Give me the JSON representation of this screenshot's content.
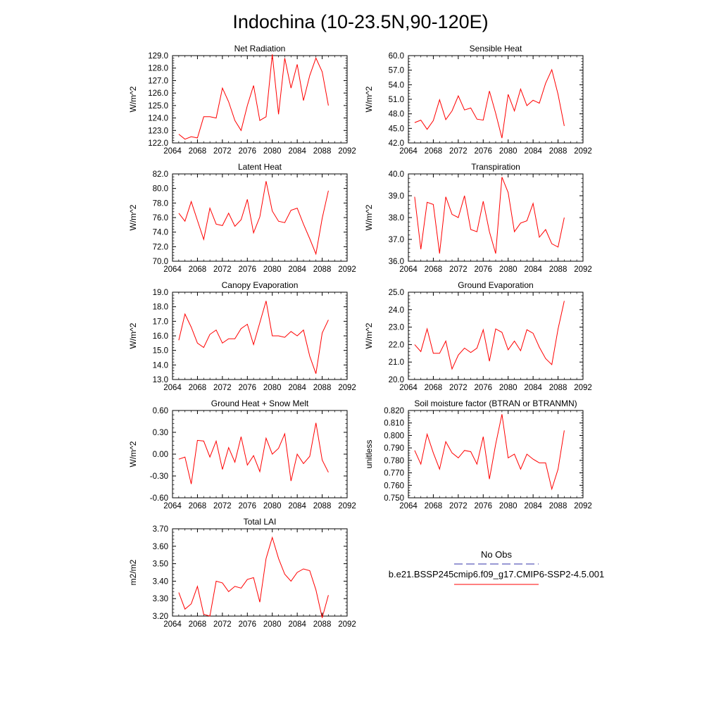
{
  "title": "Indochina (10-23.5N,90-120E)",
  "legend": {
    "obs_label": "No Obs",
    "case_label": "b.e21.BSSP245cmip6.f09_g17.CMIP6-SSP2-4.5.001",
    "obs_color": "#3333aa",
    "case_color": "#ff0000"
  },
  "chart_data": [
    {
      "type": "line",
      "title": "Net Radiation",
      "ylabel": "W/m^2",
      "xlim": [
        2064,
        2092
      ],
      "xticks": [
        "2064",
        "2068",
        "2072",
        "2076",
        "2080",
        "2084",
        "2088",
        "2092"
      ],
      "ylim": [
        122,
        129
      ],
      "yticks": [
        "122.0",
        "123.0",
        "124.0",
        "125.0",
        "126.0",
        "127.0",
        "128.0",
        "129.0"
      ],
      "x": [
        2065,
        2066,
        2067,
        2068,
        2069,
        2070,
        2071,
        2072,
        2073,
        2074,
        2075,
        2076,
        2077,
        2078,
        2079,
        2080,
        2081,
        2082,
        2083,
        2084,
        2085,
        2086,
        2087,
        2088,
        2089
      ],
      "series": [
        {
          "values": [
            122.7,
            122.3,
            122.5,
            122.4,
            124.1,
            124.1,
            124.0,
            126.4,
            125.3,
            123.8,
            123.0,
            125.0,
            126.6,
            123.8,
            124.1,
            129.1,
            124.3,
            128.8,
            126.4,
            128.3,
            125.4,
            127.4,
            128.8,
            127.7,
            125.0
          ]
        }
      ]
    },
    {
      "type": "line",
      "title": "Sensible Heat",
      "ylabel": "W/m^2",
      "xlim": [
        2064,
        2092
      ],
      "xticks": [
        "2064",
        "2068",
        "2072",
        "2076",
        "2080",
        "2084",
        "2088",
        "2092"
      ],
      "ylim": [
        42,
        60
      ],
      "yticks": [
        "42.0",
        "45.0",
        "48.0",
        "51.0",
        "54.0",
        "57.0",
        "60.0"
      ],
      "x": [
        2065,
        2066,
        2067,
        2068,
        2069,
        2070,
        2071,
        2072,
        2073,
        2074,
        2075,
        2076,
        2077,
        2078,
        2079,
        2080,
        2081,
        2082,
        2083,
        2084,
        2085,
        2086,
        2087,
        2088,
        2089
      ],
      "series": [
        {
          "values": [
            46.2,
            46.7,
            44.8,
            46.6,
            50.9,
            46.8,
            48.6,
            51.7,
            48.8,
            49.2,
            46.9,
            46.7,
            52.7,
            48.1,
            43.0,
            52.0,
            48.6,
            53.1,
            49.7,
            50.8,
            50.2,
            54.3,
            57.1,
            52.0,
            45.5
          ]
        }
      ]
    },
    {
      "type": "line",
      "title": "Latent Heat",
      "ylabel": "W/m^2",
      "xlim": [
        2064,
        2092
      ],
      "xticks": [
        "2064",
        "2068",
        "2072",
        "2076",
        "2080",
        "2084",
        "2088",
        "2092"
      ],
      "ylim": [
        70,
        82
      ],
      "yticks": [
        "70.0",
        "72.0",
        "74.0",
        "76.0",
        "78.0",
        "80.0",
        "82.0"
      ],
      "x": [
        2065,
        2066,
        2067,
        2068,
        2069,
        2070,
        2071,
        2072,
        2073,
        2074,
        2075,
        2076,
        2077,
        2078,
        2079,
        2080,
        2081,
        2082,
        2083,
        2084,
        2085,
        2086,
        2087,
        2088,
        2089
      ],
      "series": [
        {
          "values": [
            76.6,
            75.5,
            78.2,
            75.6,
            73.0,
            77.3,
            75.1,
            74.9,
            76.6,
            74.8,
            75.7,
            78.5,
            73.9,
            76.1,
            81.0,
            76.9,
            75.5,
            75.3,
            77.0,
            77.3,
            75.1,
            73.1,
            71.0,
            75.9,
            79.7
          ]
        }
      ]
    },
    {
      "type": "line",
      "title": "Transpiration",
      "ylabel": "W/m^2",
      "xlim": [
        2064,
        2092
      ],
      "xticks": [
        "2064",
        "2068",
        "2072",
        "2076",
        "2080",
        "2084",
        "2088",
        "2092"
      ],
      "ylim": [
        36,
        40
      ],
      "yticks": [
        "36.0",
        "37.0",
        "38.0",
        "39.0",
        "40.0"
      ],
      "x": [
        2065,
        2066,
        2067,
        2068,
        2069,
        2070,
        2071,
        2072,
        2073,
        2074,
        2075,
        2076,
        2077,
        2078,
        2079,
        2080,
        2081,
        2082,
        2083,
        2084,
        2085,
        2086,
        2087,
        2088,
        2089
      ],
      "series": [
        {
          "values": [
            38.95,
            36.55,
            38.7,
            38.6,
            36.35,
            38.95,
            38.15,
            38.0,
            39.0,
            37.45,
            37.35,
            38.75,
            37.35,
            36.35,
            39.85,
            39.15,
            37.35,
            37.75,
            37.85,
            38.65,
            37.1,
            37.45,
            36.8,
            36.65,
            38.0
          ]
        }
      ]
    },
    {
      "type": "line",
      "title": "Canopy Evaporation",
      "ylabel": "W/m^2",
      "xlim": [
        2064,
        2092
      ],
      "xticks": [
        "2064",
        "2068",
        "2072",
        "2076",
        "2080",
        "2084",
        "2088",
        "2092"
      ],
      "ylim": [
        13,
        19
      ],
      "yticks": [
        "13.0",
        "14.0",
        "15.0",
        "16.0",
        "17.0",
        "18.0",
        "19.0"
      ],
      "x": [
        2065,
        2066,
        2067,
        2068,
        2069,
        2070,
        2071,
        2072,
        2073,
        2074,
        2075,
        2076,
        2077,
        2078,
        2079,
        2080,
        2081,
        2082,
        2083,
        2084,
        2085,
        2086,
        2087,
        2088,
        2089
      ],
      "series": [
        {
          "values": [
            15.7,
            17.5,
            16.6,
            15.5,
            15.2,
            16.1,
            16.4,
            15.5,
            15.8,
            15.8,
            16.5,
            16.8,
            15.4,
            16.9,
            18.4,
            16.0,
            16.0,
            15.9,
            16.3,
            16.0,
            16.4,
            14.6,
            13.4,
            16.2,
            17.1
          ]
        }
      ]
    },
    {
      "type": "line",
      "title": "Ground Evaporation",
      "ylabel": "W/m^2",
      "xlim": [
        2064,
        2092
      ],
      "xticks": [
        "2064",
        "2068",
        "2072",
        "2076",
        "2080",
        "2084",
        "2088",
        "2092"
      ],
      "ylim": [
        20,
        25
      ],
      "yticks": [
        "20.0",
        "21.0",
        "22.0",
        "23.0",
        "24.0",
        "25.0"
      ],
      "x": [
        2065,
        2066,
        2067,
        2068,
        2069,
        2070,
        2071,
        2072,
        2073,
        2074,
        2075,
        2076,
        2077,
        2078,
        2079,
        2080,
        2081,
        2082,
        2083,
        2084,
        2085,
        2086,
        2087,
        2088,
        2089
      ],
      "series": [
        {
          "values": [
            22.0,
            21.6,
            22.9,
            21.5,
            21.5,
            22.2,
            20.6,
            21.4,
            21.8,
            21.55,
            21.8,
            22.85,
            21.05,
            22.9,
            22.7,
            21.7,
            22.2,
            21.65,
            22.85,
            22.65,
            21.85,
            21.2,
            20.85,
            22.9,
            24.5
          ]
        }
      ]
    },
    {
      "type": "line",
      "title": "Ground Heat + Snow Melt",
      "ylabel": "W/m^2",
      "xlim": [
        2064,
        2092
      ],
      "xticks": [
        "2064",
        "2068",
        "2072",
        "2076",
        "2080",
        "2084",
        "2088",
        "2092"
      ],
      "ylim": [
        -0.6,
        0.6
      ],
      "yticks": [
        "-0.60",
        "-0.30",
        "0.00",
        "0.30",
        "0.60"
      ],
      "x": [
        2065,
        2066,
        2067,
        2068,
        2069,
        2070,
        2071,
        2072,
        2073,
        2074,
        2075,
        2076,
        2077,
        2078,
        2079,
        2080,
        2081,
        2082,
        2083,
        2084,
        2085,
        2086,
        2087,
        2088,
        2089
      ],
      "series": [
        {
          "values": [
            -0.07,
            -0.04,
            -0.41,
            0.19,
            0.18,
            -0.04,
            0.18,
            -0.21,
            0.09,
            -0.11,
            0.24,
            -0.15,
            -0.02,
            -0.24,
            0.22,
            0.0,
            0.08,
            0.28,
            -0.37,
            0.0,
            -0.13,
            -0.03,
            0.43,
            -0.08,
            -0.25
          ]
        }
      ]
    },
    {
      "type": "line",
      "title": "Soil moisture factor (BTRAN or BTRANMN)",
      "ylabel": "unitless",
      "xlim": [
        2064,
        2092
      ],
      "xticks": [
        "2064",
        "2068",
        "2072",
        "2076",
        "2080",
        "2084",
        "2088",
        "2092"
      ],
      "ylim": [
        0.75,
        0.82
      ],
      "yticks": [
        "0.750",
        "0.760",
        "0.770",
        "0.780",
        "0.790",
        "0.800",
        "0.810",
        "0.820"
      ],
      "x": [
        2065,
        2066,
        2067,
        2068,
        2069,
        2070,
        2071,
        2072,
        2073,
        2074,
        2075,
        2076,
        2077,
        2078,
        2079,
        2080,
        2081,
        2082,
        2083,
        2084,
        2085,
        2086,
        2087,
        2088,
        2089
      ],
      "series": [
        {
          "values": [
            0.788,
            0.777,
            0.801,
            0.786,
            0.773,
            0.795,
            0.786,
            0.782,
            0.788,
            0.787,
            0.777,
            0.799,
            0.765,
            0.793,
            0.817,
            0.782,
            0.785,
            0.773,
            0.785,
            0.781,
            0.778,
            0.778,
            0.757,
            0.773,
            0.804
          ]
        }
      ]
    },
    {
      "type": "line",
      "title": "Total LAI",
      "ylabel": "m2/m2",
      "xlim": [
        2064,
        2092
      ],
      "xticks": [
        "2064",
        "2068",
        "2072",
        "2076",
        "2080",
        "2084",
        "2088",
        "2092"
      ],
      "ylim": [
        3.2,
        3.7
      ],
      "yticks": [
        "3.20",
        "3.30",
        "3.40",
        "3.50",
        "3.60",
        "3.70"
      ],
      "x": [
        2065,
        2066,
        2067,
        2068,
        2069,
        2070,
        2071,
        2072,
        2073,
        2074,
        2075,
        2076,
        2077,
        2078,
        2079,
        2080,
        2081,
        2082,
        2083,
        2084,
        2085,
        2086,
        2087,
        2088,
        2089
      ],
      "series": [
        {
          "values": [
            3.335,
            3.24,
            3.27,
            3.37,
            3.21,
            3.2,
            3.4,
            3.39,
            3.34,
            3.37,
            3.36,
            3.41,
            3.42,
            3.28,
            3.53,
            3.65,
            3.53,
            3.44,
            3.4,
            3.45,
            3.47,
            3.46,
            3.35,
            3.19,
            3.32
          ]
        }
      ]
    }
  ]
}
